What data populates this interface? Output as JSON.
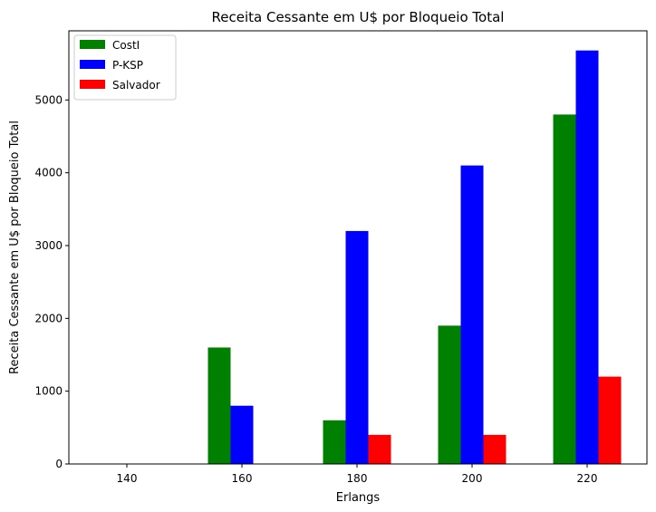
{
  "chart_data": {
    "type": "bar",
    "title": "Receita Cessante em U$ por Bloqueio Total",
    "xlabel": "Erlangs",
    "ylabel": "Receita Cessante em U$ por Bloqueio Total",
    "categories": [
      "140",
      "160",
      "180",
      "200",
      "220"
    ],
    "yticks": [
      0,
      1000,
      2000,
      3000,
      4000,
      5000
    ],
    "ylim": [
      0,
      5950
    ],
    "grid": false,
    "legend_position": "top-left",
    "series": [
      {
        "name": "CostI",
        "color": "#008000",
        "values": [
          0,
          1600,
          600,
          1900,
          4800
        ]
      },
      {
        "name": "P-KSP",
        "color": "#0000ff",
        "values": [
          0,
          800,
          3200,
          4100,
          5680
        ]
      },
      {
        "name": "Salvador",
        "color": "#ff0000",
        "values": [
          0,
          0,
          400,
          400,
          1200
        ]
      }
    ]
  }
}
